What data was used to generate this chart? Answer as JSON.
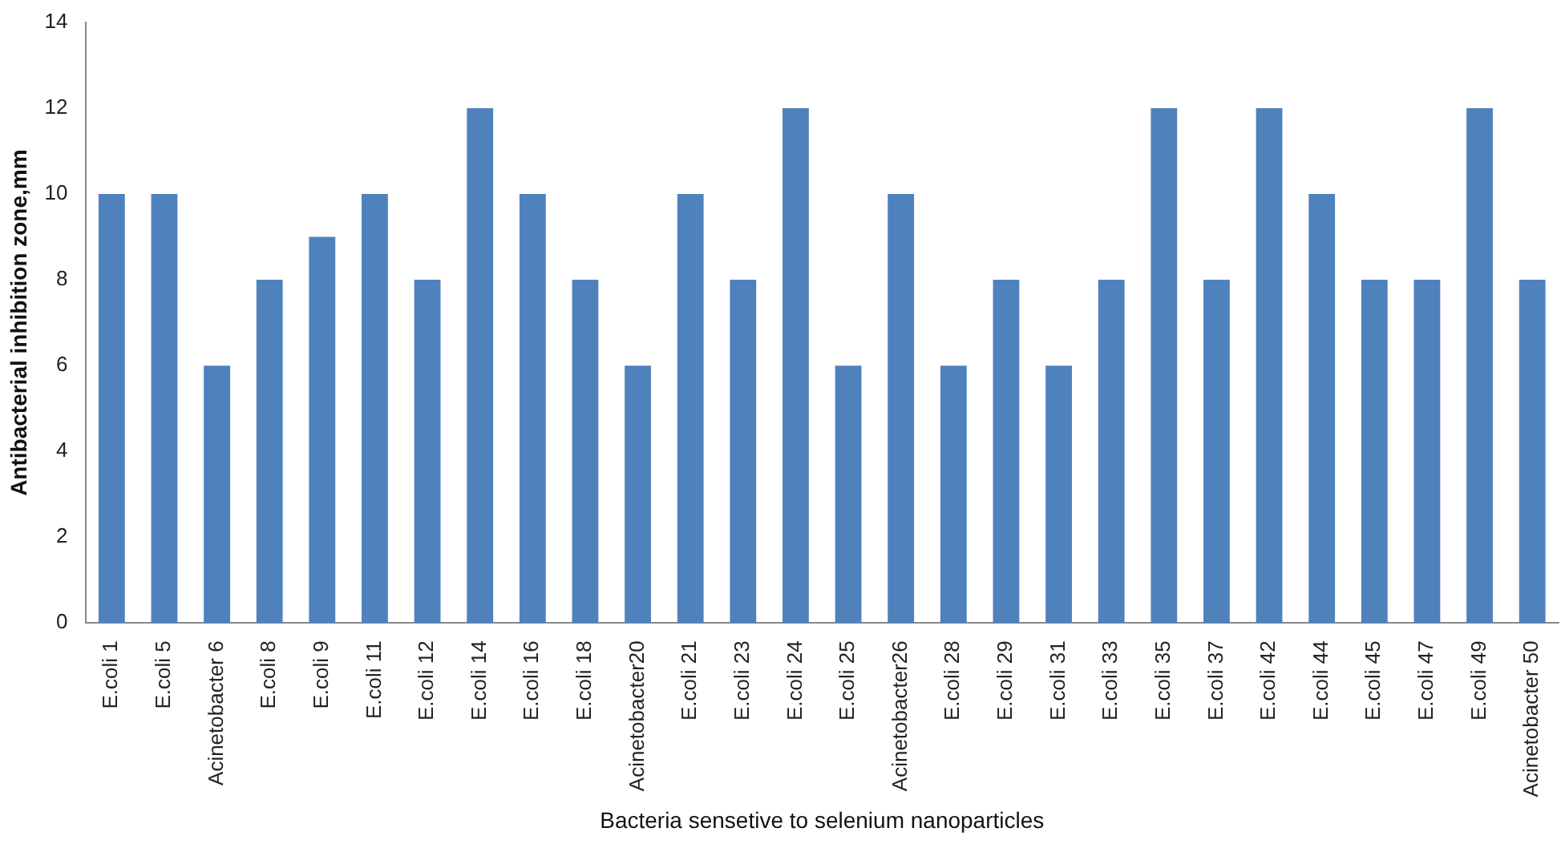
{
  "chart_data": {
    "type": "bar",
    "xlabel": "Bacteria sensetive to selenium nanoparticles",
    "ylabel": "Antibacterial inhibition zone,mm",
    "categories": [
      "E.coli 1",
      "E.coli 5",
      "Acinetobacter 6",
      "E.coli 8",
      "E.coli 9",
      "E.coli 11",
      "E.coli 12",
      "E.coli 14",
      "E.coli 16",
      "E.coli 18",
      "Acinetobacter20",
      "E.coli 21",
      "E.coli 23",
      "E.coli 24",
      "E.coli 25",
      "Acinetobacter26",
      "E.coli 28",
      "E.coli 29",
      "E.coli 31",
      "E.coli 33",
      "E.coli 35",
      "E.coli 37",
      "E.coli 42",
      "E.coli 44",
      "E.coli 45",
      "E.coli 47",
      "E.coli 49",
      "Acinetobacter 50"
    ],
    "values": [
      10,
      10,
      6,
      8,
      9,
      10,
      8,
      12,
      10,
      8,
      6,
      10,
      8,
      12,
      6,
      10,
      6,
      8,
      6,
      8,
      12,
      8,
      12,
      10,
      8,
      8,
      12,
      8
    ],
    "color": "#4f81bd",
    "ylim": [
      0,
      14
    ],
    "yticks": [
      0,
      2,
      4,
      6,
      8,
      10,
      12,
      14
    ],
    "grid": false,
    "legend": false
  }
}
